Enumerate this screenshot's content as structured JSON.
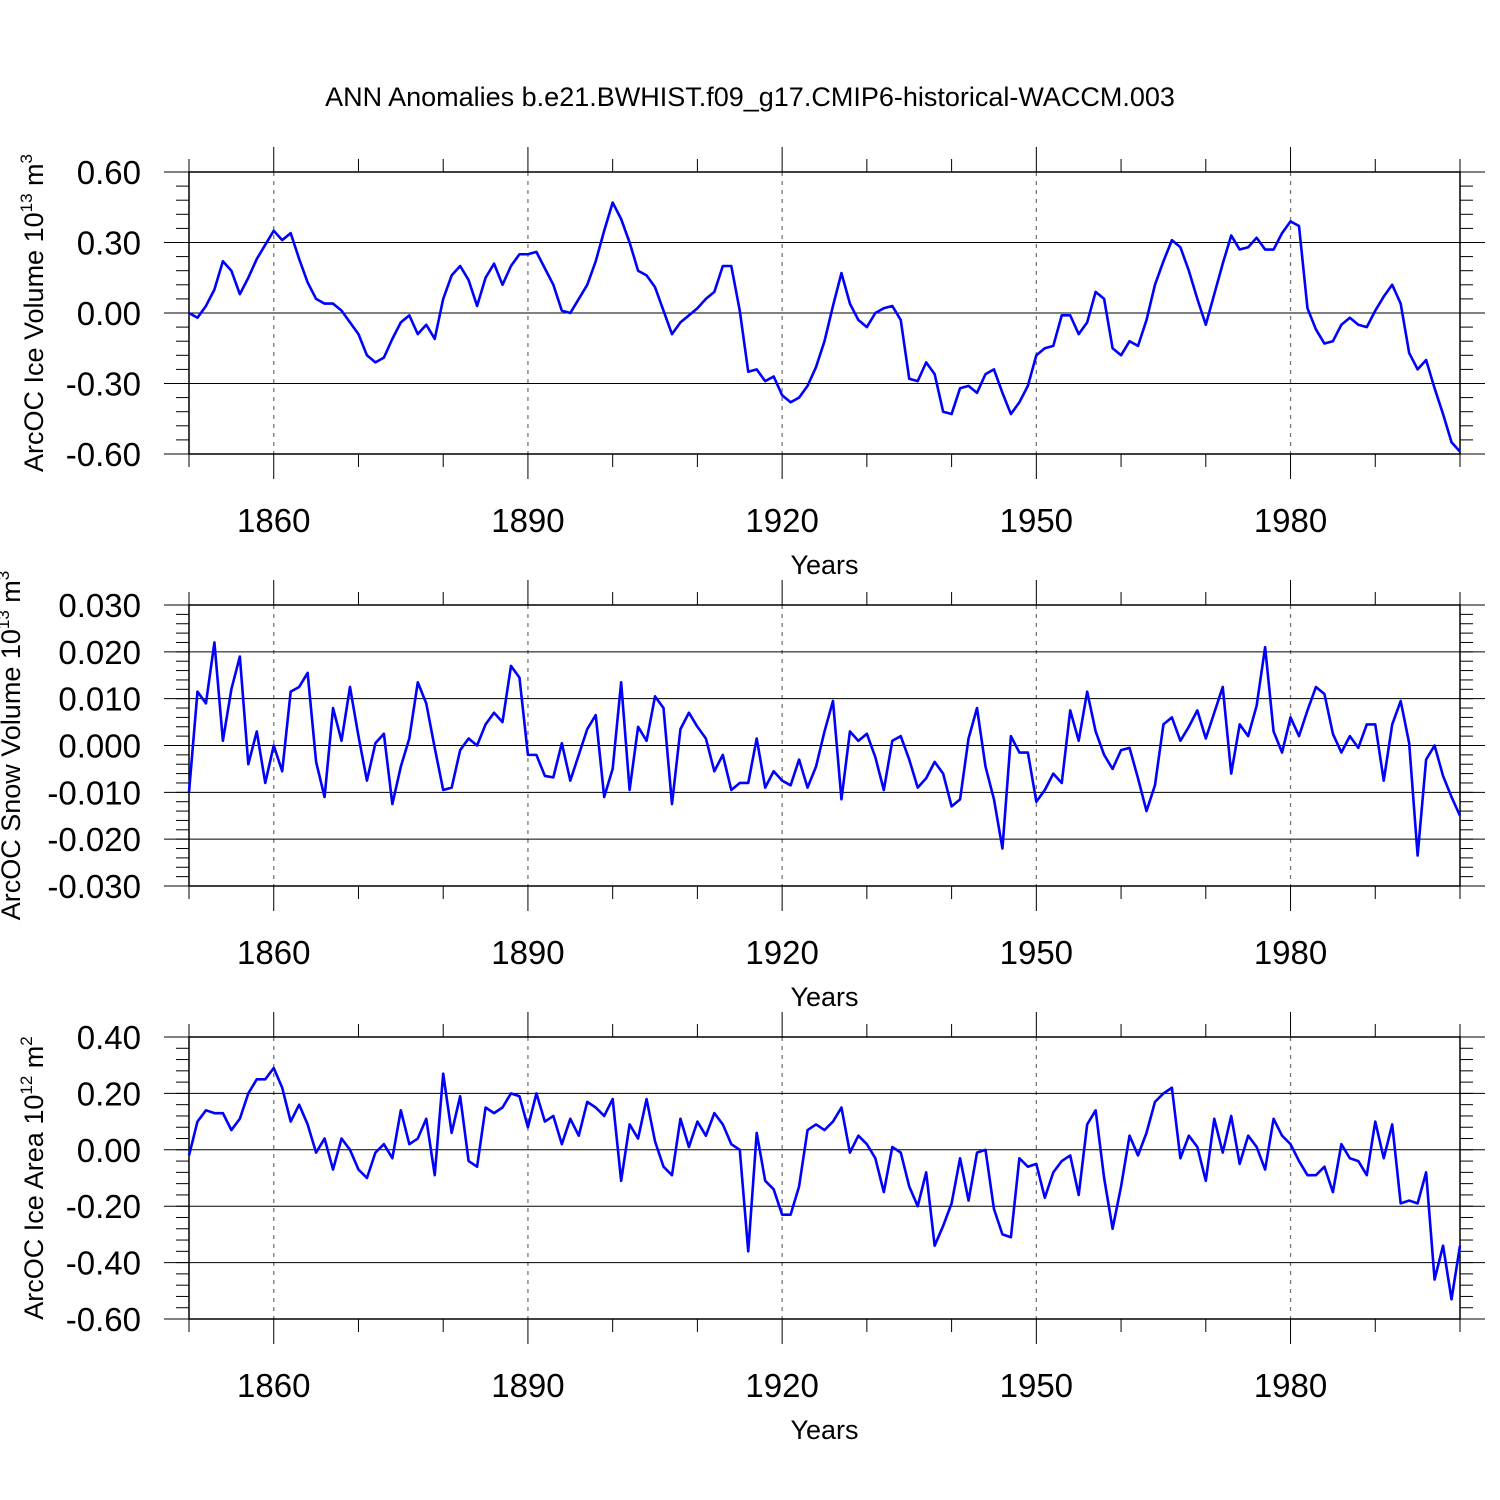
{
  "figure_title": "ANN Anomalies b.e21.BWHIST.f09_g17.CMIP6-historical-WACCM.003",
  "line_color": "#0000ff",
  "chart_data": [
    {
      "type": "line",
      "name": "ice-volume",
      "xlabel": "Years",
      "ylabel": {
        "base": "ArcOC Ice Volume 10",
        "exp": "13",
        "unit": " m",
        "unit_exp": "3"
      },
      "xlim": [
        1850,
        2000
      ],
      "ylim": [
        -0.6,
        0.6
      ],
      "x_start": 1850,
      "x_ticks": [
        1860,
        1890,
        1920,
        1950,
        1980
      ],
      "x_tick_labels": [
        "1860",
        "1890",
        "1920",
        "1950",
        "1980"
      ],
      "y_ticks": [
        0.6,
        0.3,
        0.0,
        -0.3,
        -0.6
      ],
      "y_tick_labels": [
        "0.60",
        "0.30",
        "0.00",
        "-0.30",
        "-0.60"
      ],
      "y_minor_step": 0.06,
      "x_grid": "dashed vertical at major ticks",
      "series": [
        {
          "name": "ArcOC Ice Volume",
          "values": [
            0.0,
            -0.02,
            0.03,
            0.1,
            0.22,
            0.18,
            0.08,
            0.15,
            0.23,
            0.29,
            0.35,
            0.31,
            0.34,
            0.23,
            0.13,
            0.06,
            0.04,
            0.04,
            0.01,
            -0.04,
            -0.09,
            -0.18,
            -0.21,
            -0.19,
            -0.11,
            -0.04,
            -0.01,
            -0.09,
            -0.05,
            -0.11,
            0.06,
            0.16,
            0.2,
            0.14,
            0.03,
            0.15,
            0.21,
            0.12,
            0.2,
            0.25,
            0.25,
            0.26,
            0.19,
            0.12,
            0.01,
            0.0,
            0.06,
            0.12,
            0.22,
            0.35,
            0.47,
            0.4,
            0.3,
            0.18,
            0.16,
            0.11,
            0.01,
            -0.09,
            -0.04,
            -0.01,
            0.02,
            0.06,
            0.09,
            0.2,
            0.2,
            0.01,
            -0.25,
            -0.24,
            -0.29,
            -0.27,
            -0.35,
            -0.38,
            -0.36,
            -0.31,
            -0.23,
            -0.12,
            0.03,
            0.17,
            0.04,
            -0.03,
            -0.06,
            0.0,
            0.02,
            0.03,
            -0.03,
            -0.28,
            -0.29,
            -0.21,
            -0.26,
            -0.42,
            -0.43,
            -0.32,
            -0.31,
            -0.34,
            -0.26,
            -0.24,
            -0.34,
            -0.43,
            -0.38,
            -0.31,
            -0.18,
            -0.15,
            -0.14,
            -0.01,
            -0.01,
            -0.09,
            -0.04,
            0.09,
            0.06,
            -0.15,
            -0.18,
            -0.12,
            -0.14,
            -0.03,
            0.12,
            0.22,
            0.31,
            0.28,
            0.18,
            0.06,
            -0.05,
            0.08,
            0.21,
            0.33,
            0.27,
            0.28,
            0.32,
            0.27,
            0.27,
            0.34,
            0.39,
            0.37,
            0.02,
            -0.07,
            -0.13,
            -0.12,
            -0.05,
            -0.02,
            -0.05,
            -0.06,
            0.01,
            0.07,
            0.12,
            0.04,
            -0.17,
            -0.24,
            -0.2,
            -0.32,
            -0.43,
            -0.55,
            -0.59
          ]
        }
      ]
    },
    {
      "type": "line",
      "name": "snow-volume",
      "xlabel": "Years",
      "ylabel": {
        "base": "ArcOC Snow Volume 10",
        "exp": "13",
        "unit": " m",
        "unit_exp": "3"
      },
      "xlim": [
        1850,
        2000
      ],
      "ylim": [
        -0.03,
        0.03
      ],
      "x_start": 1850,
      "x_ticks": [
        1860,
        1890,
        1920,
        1950,
        1980
      ],
      "x_tick_labels": [
        "1860",
        "1890",
        "1920",
        "1950",
        "1980"
      ],
      "y_ticks": [
        0.03,
        0.02,
        0.01,
        0.0,
        -0.01,
        -0.02,
        -0.03
      ],
      "y_tick_labels": [
        "0.030",
        "0.020",
        "0.010",
        "0.000",
        "-0.010",
        "-0.020",
        "-0.030"
      ],
      "y_minor_step": 0.002,
      "x_grid": "dashed vertical at major ticks",
      "series": [
        {
          "name": "ArcOC Snow Volume",
          "values": [
            -0.01,
            0.0115,
            0.009,
            0.022,
            0.001,
            0.012,
            0.019,
            -0.004,
            0.003,
            -0.008,
            0.0,
            -0.0055,
            0.0115,
            0.0125,
            0.0155,
            -0.0035,
            -0.011,
            0.008,
            0.001,
            0.0125,
            0.002,
            -0.0075,
            0.0005,
            0.0025,
            -0.0125,
            -0.0045,
            0.0015,
            0.0135,
            0.009,
            -0.0005,
            -0.0095,
            -0.009,
            -0.001,
            0.0015,
            0.0,
            0.0045,
            0.007,
            0.005,
            0.017,
            0.0145,
            -0.002,
            -0.002,
            -0.0065,
            -0.0068,
            0.0005,
            -0.0075,
            -0.002,
            0.0035,
            0.0065,
            -0.011,
            -0.005,
            0.0135,
            -0.0095,
            0.004,
            0.001,
            0.0105,
            0.008,
            -0.0125,
            0.0035,
            0.007,
            0.004,
            0.0015,
            -0.0055,
            -0.002,
            -0.0095,
            -0.008,
            -0.008,
            0.0015,
            -0.009,
            -0.0055,
            -0.0075,
            -0.0085,
            -0.003,
            -0.009,
            -0.0045,
            0.003,
            0.0095,
            -0.0115,
            0.003,
            0.001,
            0.0025,
            -0.0025,
            -0.0095,
            0.001,
            0.002,
            -0.003,
            -0.009,
            -0.007,
            -0.0035,
            -0.006,
            -0.013,
            -0.0115,
            0.0015,
            0.008,
            -0.0045,
            -0.0115,
            -0.022,
            0.002,
            -0.0015,
            -0.0015,
            -0.012,
            -0.0095,
            -0.006,
            -0.008,
            0.0075,
            0.001,
            0.0115,
            0.003,
            -0.002,
            -0.005,
            -0.001,
            -0.0005,
            -0.007,
            -0.014,
            -0.0085,
            0.0045,
            0.006,
            0.001,
            0.004,
            0.0075,
            0.0015,
            0.007,
            0.0125,
            -0.006,
            0.0045,
            0.002,
            0.0085,
            0.021,
            0.003,
            -0.0015,
            0.006,
            0.002,
            0.0075,
            0.0125,
            0.011,
            0.0025,
            -0.0015,
            0.002,
            -0.0005,
            0.0045,
            0.0045,
            -0.0075,
            0.0045,
            0.0095,
            0.0005,
            -0.0235,
            -0.003,
            0.0,
            -0.0065,
            -0.011,
            -0.015
          ]
        }
      ]
    },
    {
      "type": "line",
      "name": "ice-area",
      "xlabel": "Years",
      "ylabel": {
        "base": "ArcOC Ice Area 10",
        "exp": "12",
        "unit": " m",
        "unit_exp": "2"
      },
      "xlim": [
        1850,
        2000
      ],
      "ylim": [
        -0.6,
        0.4
      ],
      "x_start": 1850,
      "x_ticks": [
        1860,
        1890,
        1920,
        1950,
        1980
      ],
      "x_tick_labels": [
        "1860",
        "1890",
        "1920",
        "1950",
        "1980"
      ],
      "y_ticks": [
        0.4,
        0.2,
        0.0,
        -0.2,
        -0.4,
        -0.6
      ],
      "y_tick_labels": [
        "0.40",
        "0.20",
        "0.00",
        "-0.20",
        "-0.40",
        "-0.60"
      ],
      "y_minor_step": 0.04,
      "x_grid": "dashed vertical at major ticks",
      "series": [
        {
          "name": "ArcOC Ice Area",
          "values": [
            -0.02,
            0.1,
            0.14,
            0.13,
            0.13,
            0.07,
            0.11,
            0.2,
            0.25,
            0.25,
            0.29,
            0.22,
            0.1,
            0.16,
            0.09,
            -0.01,
            0.04,
            -0.07,
            0.04,
            0.0,
            -0.07,
            -0.1,
            -0.01,
            0.02,
            -0.03,
            0.14,
            0.02,
            0.04,
            0.11,
            -0.09,
            0.27,
            0.06,
            0.19,
            -0.04,
            -0.06,
            0.15,
            0.13,
            0.15,
            0.2,
            0.19,
            0.08,
            0.2,
            0.1,
            0.12,
            0.02,
            0.11,
            0.05,
            0.17,
            0.15,
            0.12,
            0.18,
            -0.11,
            0.09,
            0.04,
            0.18,
            0.03,
            -0.06,
            -0.09,
            0.11,
            0.01,
            0.1,
            0.05,
            0.13,
            0.09,
            0.02,
            0.0,
            -0.36,
            0.06,
            -0.11,
            -0.14,
            -0.23,
            -0.23,
            -0.13,
            0.07,
            0.09,
            0.07,
            0.1,
            0.15,
            -0.01,
            0.05,
            0.02,
            -0.03,
            -0.15,
            0.01,
            -0.01,
            -0.13,
            -0.2,
            -0.08,
            -0.34,
            -0.27,
            -0.19,
            -0.03,
            -0.18,
            -0.01,
            0.0,
            -0.21,
            -0.3,
            -0.31,
            -0.03,
            -0.06,
            -0.05,
            -0.17,
            -0.08,
            -0.04,
            -0.02,
            -0.16,
            0.09,
            0.14,
            -0.1,
            -0.28,
            -0.13,
            0.05,
            -0.02,
            0.06,
            0.17,
            0.2,
            0.22,
            -0.03,
            0.05,
            0.01,
            -0.11,
            0.11,
            -0.01,
            0.12,
            -0.05,
            0.05,
            0.01,
            -0.07,
            0.11,
            0.05,
            0.02,
            -0.04,
            -0.09,
            -0.09,
            -0.06,
            -0.15,
            0.02,
            -0.03,
            -0.04,
            -0.09,
            0.1,
            -0.03,
            0.09,
            -0.19,
            -0.18,
            -0.19,
            -0.08,
            -0.46,
            -0.34,
            -0.53,
            -0.34
          ]
        }
      ]
    }
  ]
}
